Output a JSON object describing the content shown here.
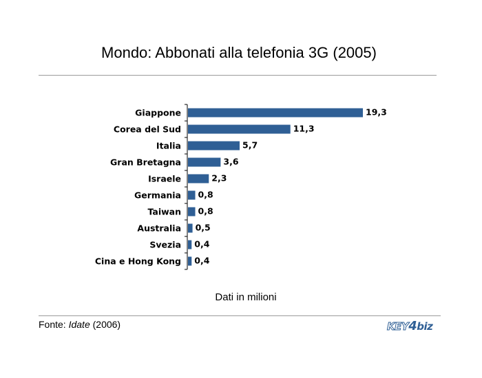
{
  "header": {
    "title": "Mondo: Abbonati alla telefonia 3G (2005)"
  },
  "chart_data": {
    "type": "bar",
    "orientation": "horizontal",
    "categories": [
      "Giappone",
      "Corea del Sud",
      "Italia",
      "Gran Bretagna",
      "Israele",
      "Germania",
      "Taiwan",
      "Australia",
      "Svezia",
      "Cina e Hong Kong"
    ],
    "values": [
      19.3,
      11.3,
      5.7,
      3.6,
      2.3,
      0.8,
      0.8,
      0.5,
      0.4,
      0.4
    ],
    "value_labels": [
      "19,3",
      "11,3",
      "5,7",
      "3,6",
      "2,3",
      "0,8",
      "0,8",
      "0,5",
      "0,4",
      "0,4"
    ],
    "xlim": [
      0,
      19.3
    ],
    "bar_color": "#2f5f95",
    "grid": false,
    "legend": "none",
    "subtitle": "Dati in milioni"
  },
  "footer": {
    "source_prefix": "Fonte: ",
    "source_name": "Idate",
    "source_year": " (2006)",
    "logo_key": "KEY",
    "logo_four": "4",
    "logo_biz": "biz"
  }
}
